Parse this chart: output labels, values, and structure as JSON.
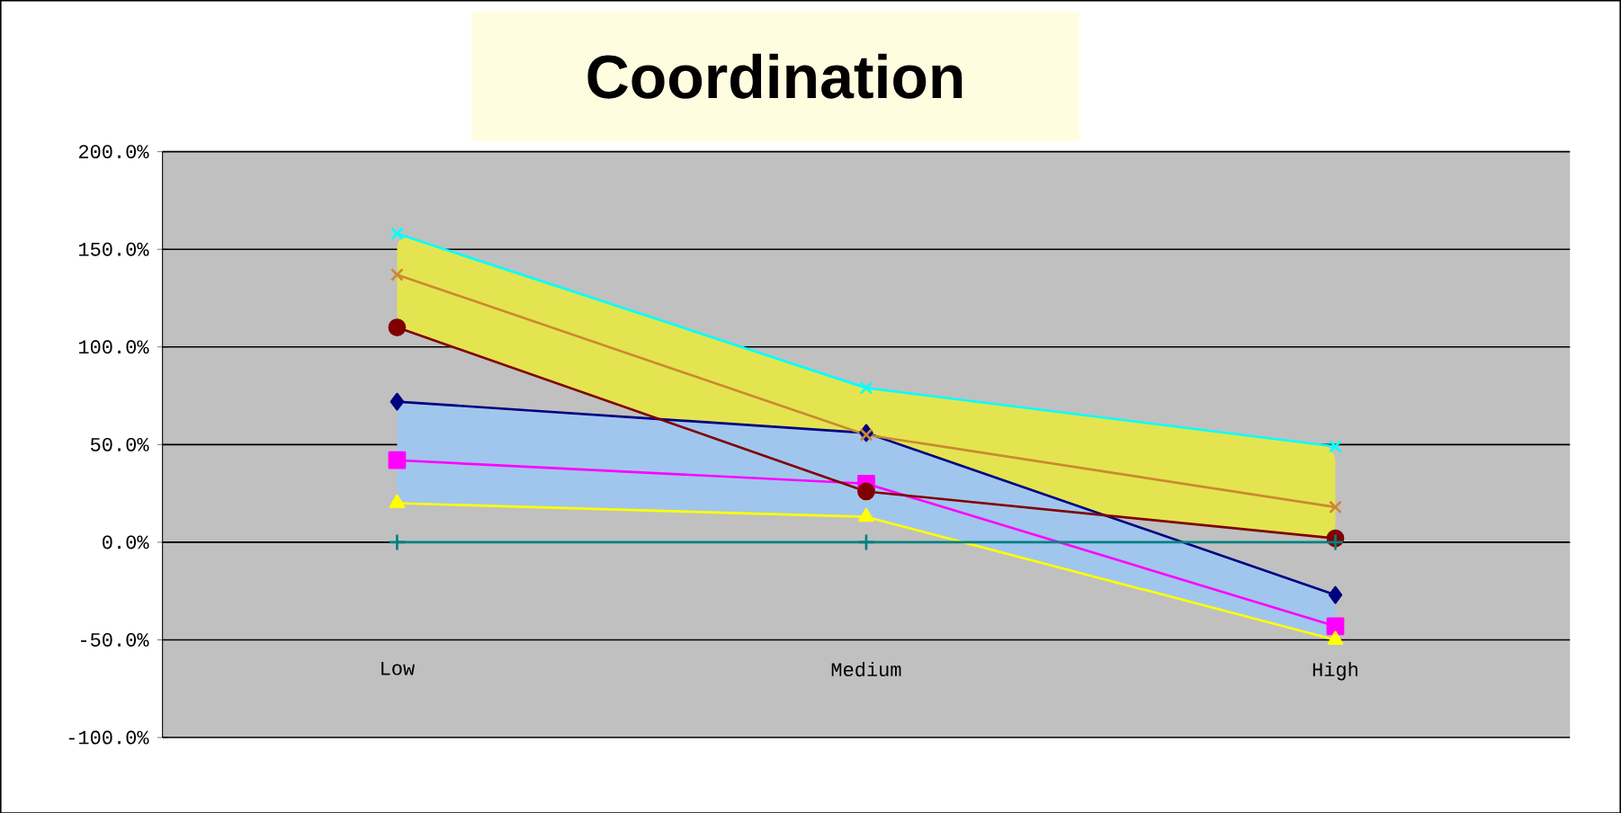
{
  "chart_data": {
    "type": "line",
    "title": "Coordination",
    "categories": [
      "Low",
      "Medium",
      "High"
    ],
    "series": [
      {
        "color": "#000080",
        "marker": "diamond",
        "values": [
          72,
          56,
          -27
        ]
      },
      {
        "color": "#ff00ff",
        "marker": "square",
        "values": [
          42,
          30,
          -43
        ]
      },
      {
        "color": "#ffff00",
        "marker": "triangle",
        "values": [
          20,
          13,
          -50
        ]
      },
      {
        "color": "#00ffff",
        "marker": "cross",
        "values": [
          158,
          79,
          49
        ]
      },
      {
        "color": "#cc8833",
        "marker": "cross",
        "values": [
          137,
          55,
          18
        ]
      },
      {
        "color": "#800000",
        "marker": "circle",
        "values": [
          110,
          26,
          2
        ]
      },
      {
        "color": "#008080",
        "marker": "plus",
        "values": [
          0,
          0,
          0
        ]
      }
    ],
    "ylim": [
      -100,
      200
    ],
    "yticks": [
      {
        "value": -100,
        "label": "-100.0%"
      },
      {
        "value": -50,
        "label": "-50.0%"
      },
      {
        "value": 0,
        "label": "0.0%"
      },
      {
        "value": 50,
        "label": "50.0%"
      },
      {
        "value": 100,
        "label": "100.0%"
      },
      {
        "value": 150,
        "label": "150.0%"
      },
      {
        "value": 200,
        "label": "200.0%"
      }
    ],
    "grid": "y"
  }
}
